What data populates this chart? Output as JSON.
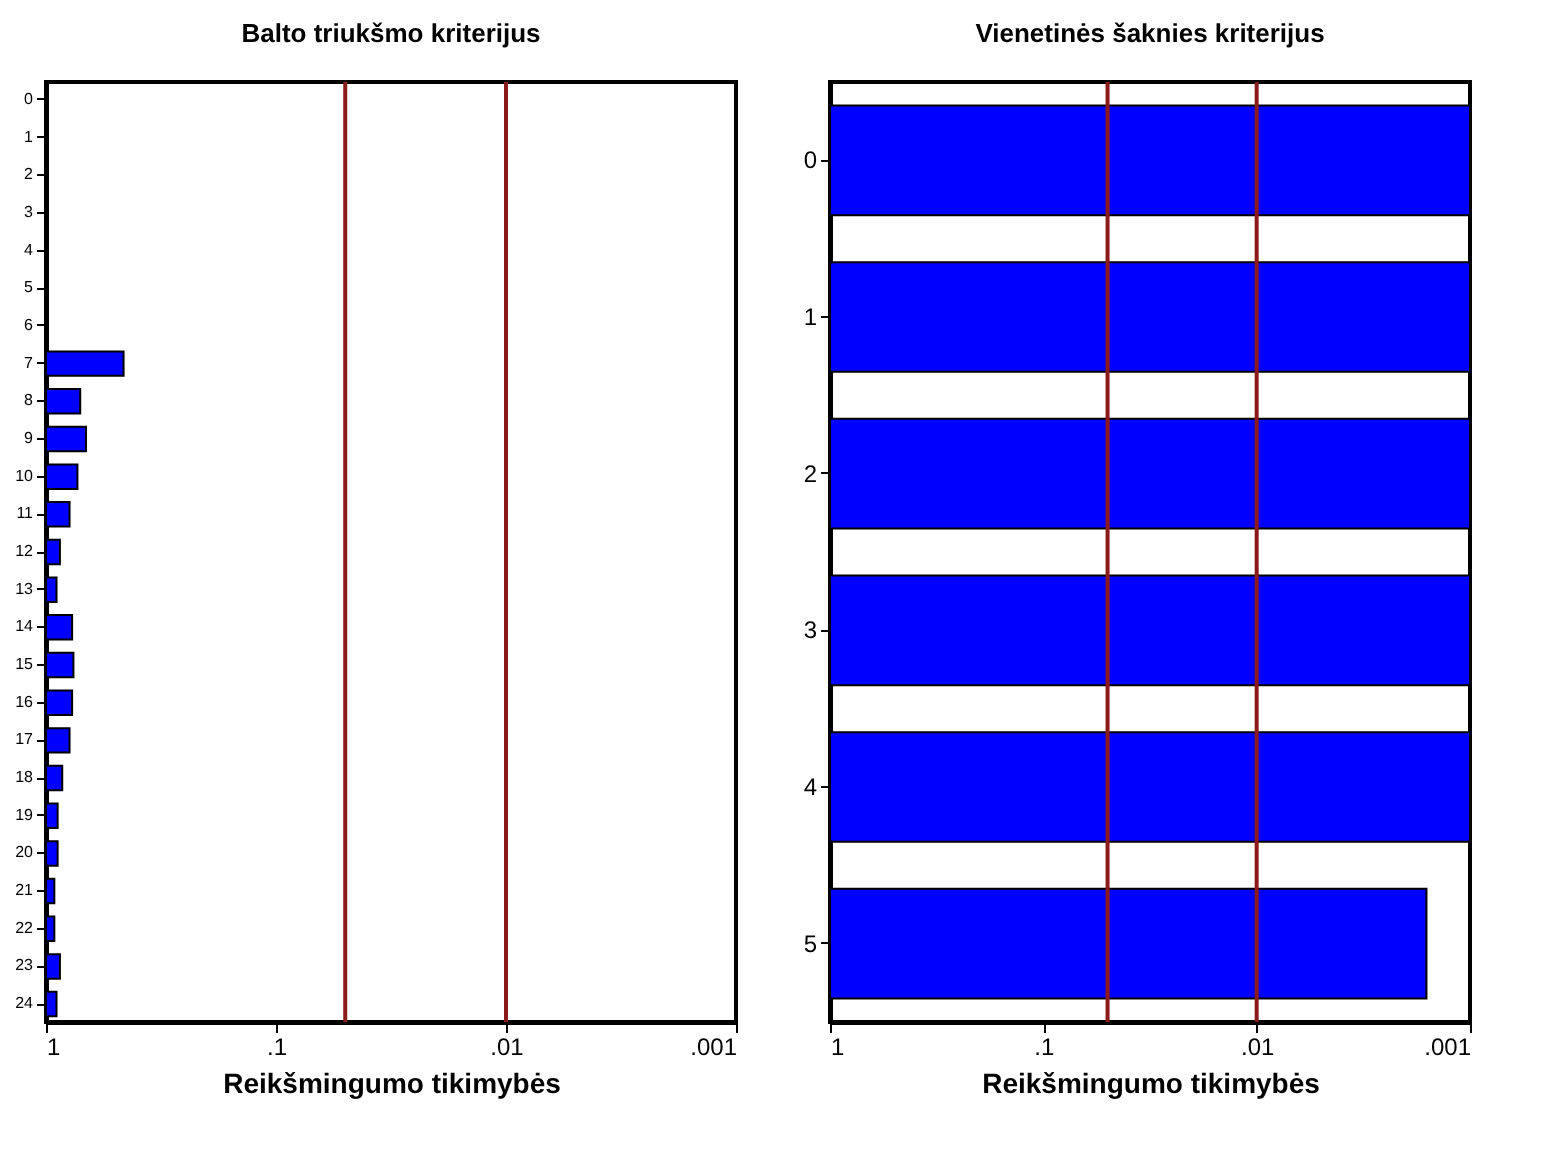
{
  "chart_data": [
    {
      "type": "bar",
      "orientation": "horizontal",
      "title": "Balto triukšmo kriterijus",
      "xlabel": "Reikšmingumo tikimybės",
      "log": "x",
      "categories": [
        "0",
        "1",
        "2",
        "3",
        "4",
        "5",
        "6",
        "7",
        "8",
        "9",
        "10",
        "11",
        "12",
        "13",
        "14",
        "15",
        "16",
        "17",
        "18",
        "19",
        "20",
        "21",
        "22",
        "23",
        "24"
      ],
      "base": [
        null,
        null,
        null,
        null,
        null,
        null,
        null,
        1,
        1,
        1,
        1,
        1,
        1,
        1,
        1,
        1,
        1,
        1,
        1,
        1,
        1,
        1,
        1,
        1,
        1
      ],
      "values": [
        null,
        null,
        null,
        null,
        null,
        null,
        null,
        -0.54,
        -0.29,
        -0.33,
        -0.27,
        -0.21,
        -0.13,
        -0.1,
        -0.23,
        -0.24,
        -0.23,
        -0.21,
        -0.15,
        -0.11,
        -0.11,
        -0.08,
        -0.08,
        -0.13,
        -0.1
      ],
      "color": "#0000ff",
      "xlim": [
        1,
        0.001
      ],
      "xticks": [
        1,
        {
          "value": 0.1,
          "label": ".1"
        },
        {
          "value": 0.01,
          "label": ".01"
        },
        {
          "value": 0.001,
          "label": ".001"
        }
      ],
      "ref_lines": [
        {
          "axis": "x",
          "value": 0.05,
          "color": "#8b1a1a"
        },
        {
          "axis": "x",
          "value": 0.01,
          "color": "#8b1a1a"
        }
      ],
      "grid": false
    },
    {
      "type": "bar",
      "orientation": "horizontal",
      "title": "Vienetinės šaknies kriterijus",
      "xlabel": "Reikšmingumo tikimybės",
      "log": "x",
      "categories": [
        "0",
        "1",
        "2",
        "3",
        "4",
        "5"
      ],
      "base": [
        1,
        1,
        1,
        1,
        1,
        1
      ],
      "values": [
        -0.999,
        -0.999,
        -0.999,
        -0.999,
        -0.999,
        -0.9984
      ],
      "color": "#0000ff",
      "xlim": [
        1,
        0.001
      ],
      "xticks": [
        1,
        {
          "value": 0.1,
          "label": ".1"
        },
        {
          "value": 0.01,
          "label": ".01"
        },
        {
          "value": 0.001,
          "label": ".001"
        }
      ],
      "ref_lines": [
        {
          "axis": "x",
          "value": 0.05,
          "color": "#8b1a1a"
        },
        {
          "axis": "x",
          "value": 0.01,
          "color": "#8b1a1a"
        }
      ],
      "grid": false
    }
  ]
}
